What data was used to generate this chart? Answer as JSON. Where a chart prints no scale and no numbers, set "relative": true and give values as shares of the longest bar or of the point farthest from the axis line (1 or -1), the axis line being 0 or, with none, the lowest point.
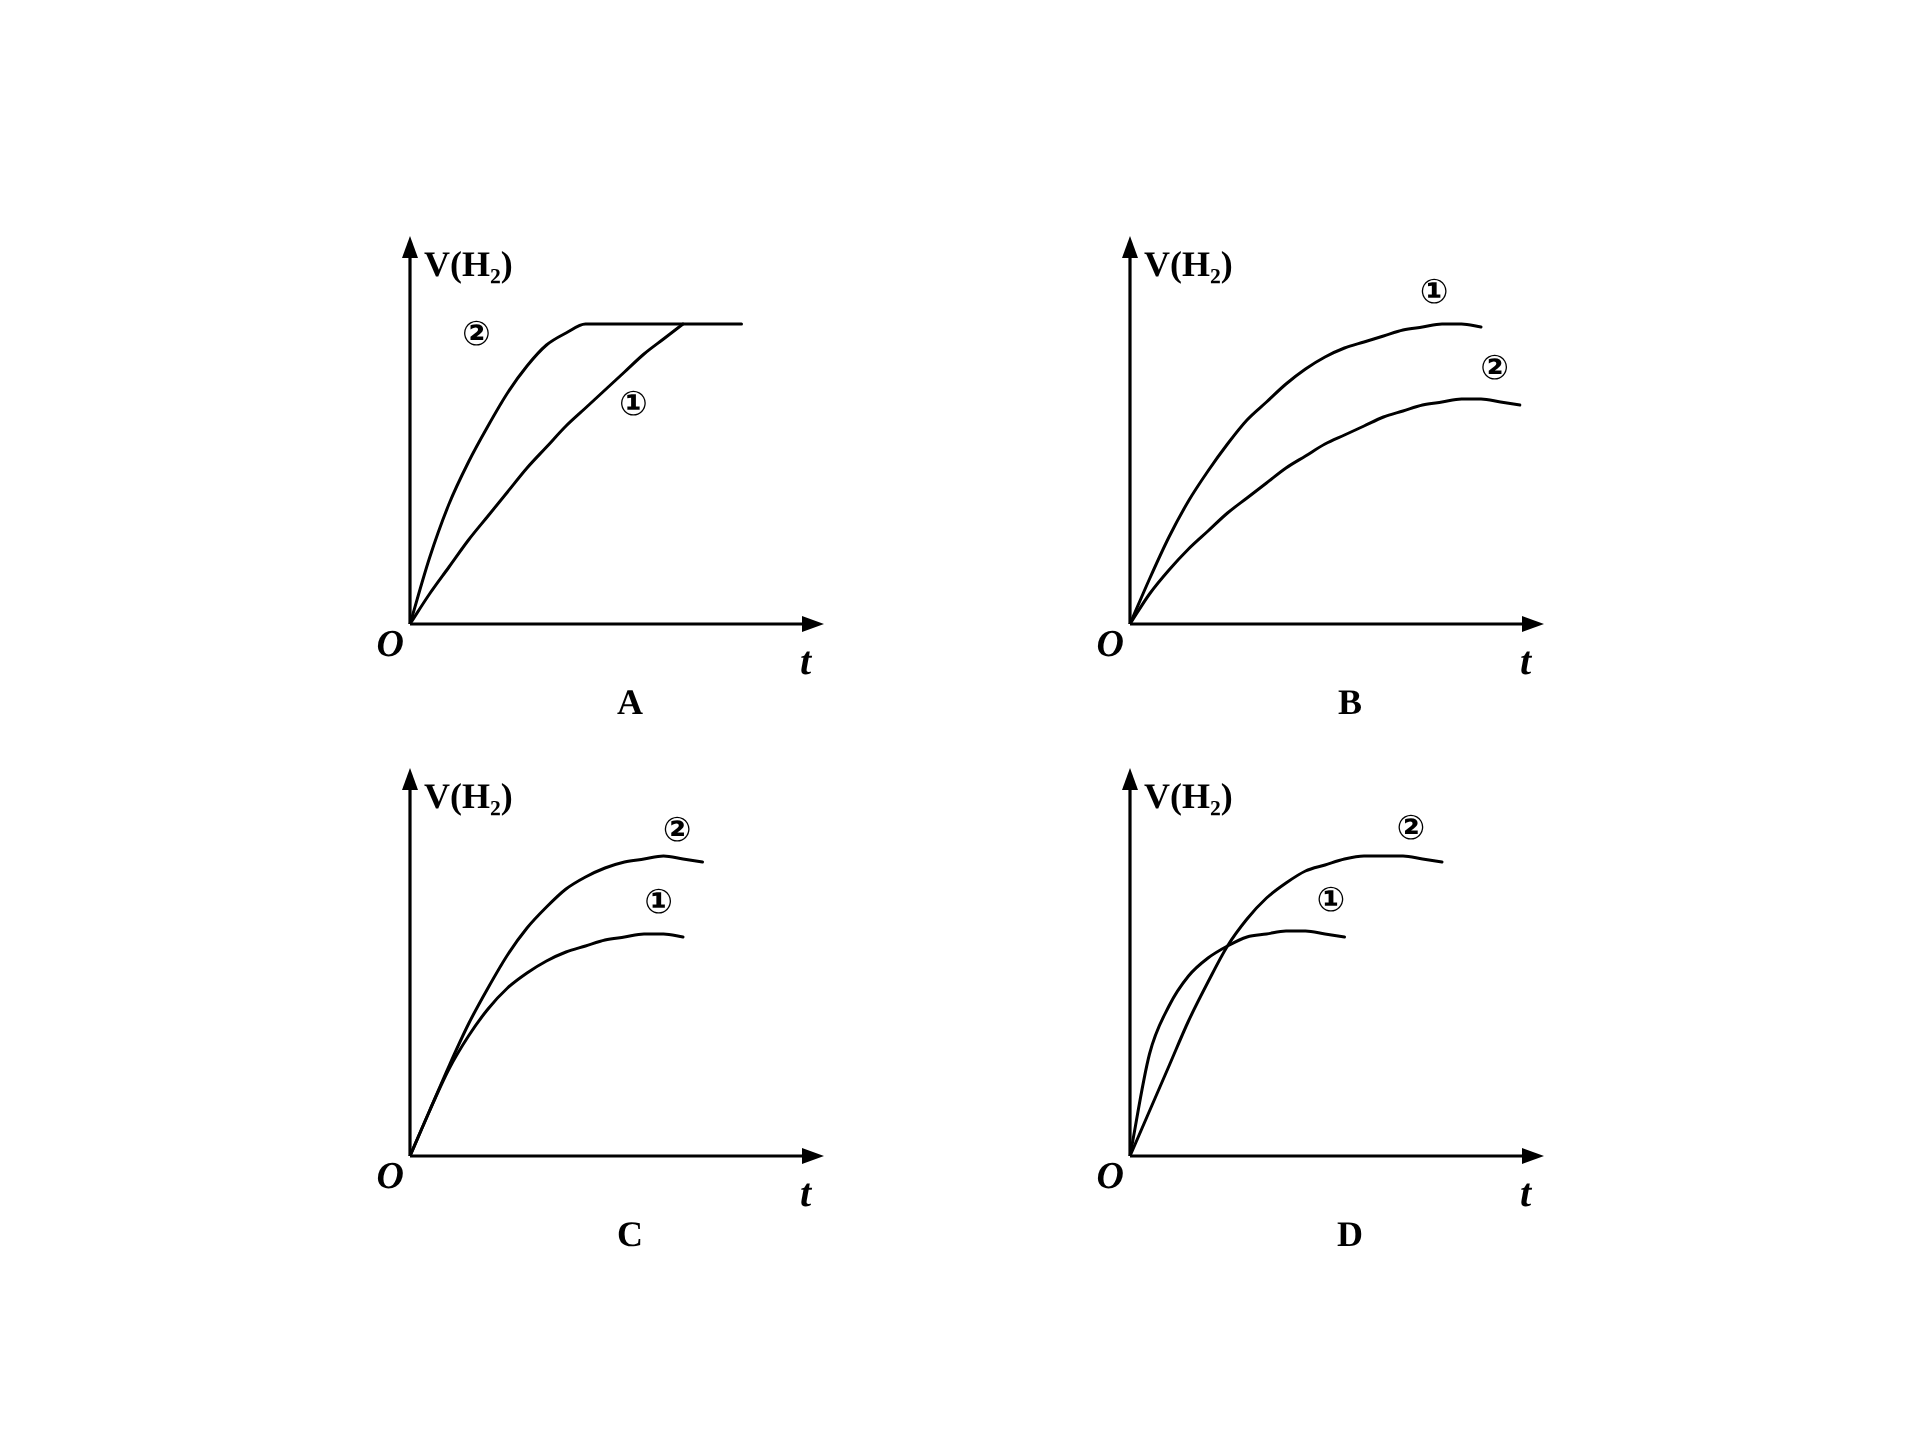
{
  "chart_data": [
    {
      "type": "line",
      "title": "A",
      "xlabel": "t",
      "ylabel": "V(H₂)",
      "annotations": [
        "O"
      ],
      "relative": true,
      "marker": "none",
      "grid": false,
      "legend": false,
      "categories": [
        null,
        null,
        null,
        null,
        null,
        null,
        null,
        null,
        null,
        null,
        null,
        null,
        null,
        null,
        null,
        null,
        null,
        null,
        null,
        null,
        null
      ],
      "series": [
        {
          "name": "①",
          "color": "#000000",
          "values": [
            0,
            0.1,
            0.19,
            0.28,
            0.36,
            0.44,
            0.52,
            0.59,
            0.66,
            0.72,
            0.78,
            0.84,
            0.9,
            0.95,
            1,
            null,
            null,
            null,
            null,
            null,
            null
          ]
        },
        {
          "name": "②",
          "color": "#000000",
          "values": [
            0,
            0.22,
            0.4,
            0.54,
            0.66,
            0.77,
            0.86,
            0.93,
            0.97,
            1,
            1,
            1,
            1,
            1,
            1,
            1,
            1,
            1,
            null,
            null,
            null
          ]
        }
      ]
    },
    {
      "type": "line",
      "title": "B",
      "xlabel": "t",
      "ylabel": "V(H₂)",
      "annotations": [
        "O"
      ],
      "relative": true,
      "marker": "none",
      "grid": false,
      "legend": false,
      "categories": [
        null,
        null,
        null,
        null,
        null,
        null,
        null,
        null,
        null,
        null,
        null,
        null,
        null,
        null,
        null,
        null,
        null,
        null,
        null,
        null,
        null
      ],
      "series": [
        {
          "name": "①",
          "color": "#000000",
          "values": [
            0,
            0.15,
            0.29,
            0.41,
            0.51,
            0.6,
            0.68,
            0.74,
            0.8,
            0.85,
            0.89,
            0.92,
            0.94,
            0.96,
            0.98,
            0.99,
            1,
            1,
            0.99,
            null,
            null
          ]
        },
        {
          "name": "②",
          "color": "#000000",
          "values": [
            0,
            0.1,
            0.18,
            0.25,
            0.31,
            0.37,
            0.42,
            0.47,
            0.52,
            0.56,
            0.6,
            0.63,
            0.66,
            0.69,
            0.71,
            0.73,
            0.74,
            0.75,
            0.75,
            0.74,
            0.73
          ]
        }
      ]
    },
    {
      "type": "line",
      "title": "C",
      "xlabel": "t",
      "ylabel": "V(H₂)",
      "annotations": [
        "O"
      ],
      "relative": true,
      "marker": "none",
      "grid": false,
      "legend": false,
      "categories": [
        null,
        null,
        null,
        null,
        null,
        null,
        null,
        null,
        null,
        null,
        null,
        null,
        null,
        null,
        null,
        null,
        null,
        null,
        null,
        null,
        null
      ],
      "series": [
        {
          "name": "①",
          "color": "#000000",
          "values": [
            0,
            0.15,
            0.29,
            0.4,
            0.49,
            0.56,
            0.61,
            0.65,
            0.68,
            0.7,
            0.72,
            0.73,
            0.74,
            0.74,
            0.73,
            null,
            null,
            null,
            null,
            null,
            null
          ]
        },
        {
          "name": "②",
          "color": "#000000",
          "values": [
            0,
            0.15,
            0.3,
            0.44,
            0.56,
            0.67,
            0.76,
            0.83,
            0.89,
            0.93,
            0.96,
            0.98,
            0.99,
            1,
            0.99,
            0.98,
            null,
            null,
            null,
            null,
            null
          ]
        }
      ]
    },
    {
      "type": "line",
      "title": "D",
      "xlabel": "t",
      "ylabel": "V(H₂)",
      "annotations": [
        "O"
      ],
      "relative": true,
      "marker": "none",
      "grid": false,
      "legend": false,
      "categories": [
        null,
        null,
        null,
        null,
        null,
        null,
        null,
        null,
        null,
        null,
        null,
        null,
        null,
        null,
        null,
        null,
        null,
        null,
        null,
        null,
        null
      ],
      "series": [
        {
          "name": "①",
          "color": "#000000",
          "values": [
            0,
            0.34,
            0.5,
            0.6,
            0.66,
            0.7,
            0.73,
            0.74,
            0.75,
            0.75,
            0.74,
            0.73,
            null,
            null,
            null,
            null,
            null,
            null,
            null,
            null,
            null
          ]
        },
        {
          "name": "②",
          "color": "#000000",
          "values": [
            0,
            0.15,
            0.3,
            0.45,
            0.58,
            0.7,
            0.79,
            0.86,
            0.91,
            0.95,
            0.97,
            0.99,
            1,
            1,
            1,
            0.99,
            0.98,
            null,
            null,
            null,
            null
          ]
        }
      ]
    }
  ]
}
